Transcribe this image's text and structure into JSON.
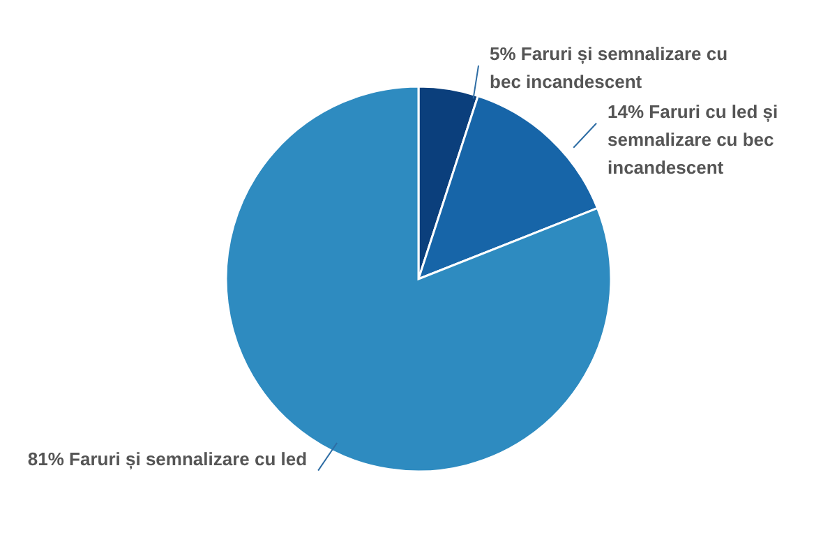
{
  "chart_data": {
    "type": "pie",
    "categories": [
      "5% Faruri și semnalizare cu bec incandescent",
      "14% Faruri cu led și semnalizare cu bec incandescent",
      "81% Faruri și semnalizare cu led"
    ],
    "values": [
      5,
      14,
      81
    ],
    "colors": [
      "#0b3f7c",
      "#1765a8",
      "#2e8bc0"
    ]
  }
}
